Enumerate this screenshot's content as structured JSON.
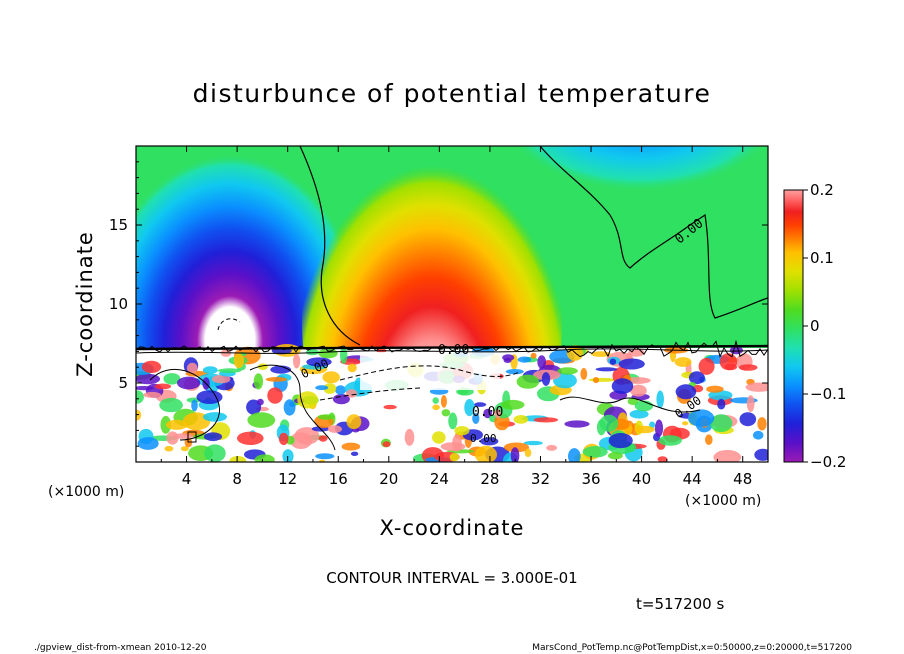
{
  "chart_data": {
    "type": "heatmap",
    "title": "disturbunce of potential temperature",
    "xlabel": "X-coordinate",
    "ylabel": "Z-coordinate",
    "x_unit_left": "(×1000 m)",
    "x_unit_right": "(×1000 m)",
    "x_ticks": [
      "4",
      "8",
      "12",
      "16",
      "20",
      "24",
      "28",
      "32",
      "36",
      "40",
      "44",
      "48"
    ],
    "x_tick_values": [
      4,
      8,
      12,
      16,
      20,
      24,
      28,
      32,
      36,
      40,
      44,
      48
    ],
    "y_ticks": [
      "5",
      "10",
      "15"
    ],
    "y_tick_values": [
      5,
      10,
      15
    ],
    "xlim": [
      0,
      50
    ],
    "ylim": [
      0,
      20
    ],
    "colorbar": {
      "ticks": [
        "0.2",
        "0.1",
        "0",
        "−0.1",
        "−0.2"
      ],
      "tick_values": [
        0.2,
        0.1,
        0,
        -0.1,
        -0.2
      ],
      "range": [
        -0.2,
        0.2
      ],
      "colors": [
        "#9b1bb5",
        "#5a10c8",
        "#2020d8",
        "#1050f0",
        "#0a90ff",
        "#10c8f0",
        "#20e0b0",
        "#30e060",
        "#50dc20",
        "#a0e000",
        "#e0e000",
        "#ffc000",
        "#ff8000",
        "#ff4000",
        "#f02020",
        "#ff6060",
        "#ffa0a0"
      ]
    },
    "contour_labels": [
      "0.00",
      "0.00",
      "0.00",
      "0.00",
      "0.00",
      "0.00"
    ],
    "field_features": [
      {
        "kind": "negative-max",
        "x": 7,
        "z": 12,
        "value": -0.2
      },
      {
        "kind": "positive-max",
        "x": 24,
        "z": 11,
        "value": 0.2
      },
      {
        "kind": "negative",
        "x": 40,
        "z": 19,
        "value": -0.1
      }
    ],
    "interface_height": 7.4
  },
  "contour_interval": "CONTOUR INTERVAL = 3.000E-01",
  "time_label": "t=517200 s",
  "footer_left": "./gpview_dist-from-xmean   2010-12-20",
  "footer_right": "MarsCond_PotTemp.nc@PotTempDist,x=0:50000,z=0:20000,t=517200"
}
